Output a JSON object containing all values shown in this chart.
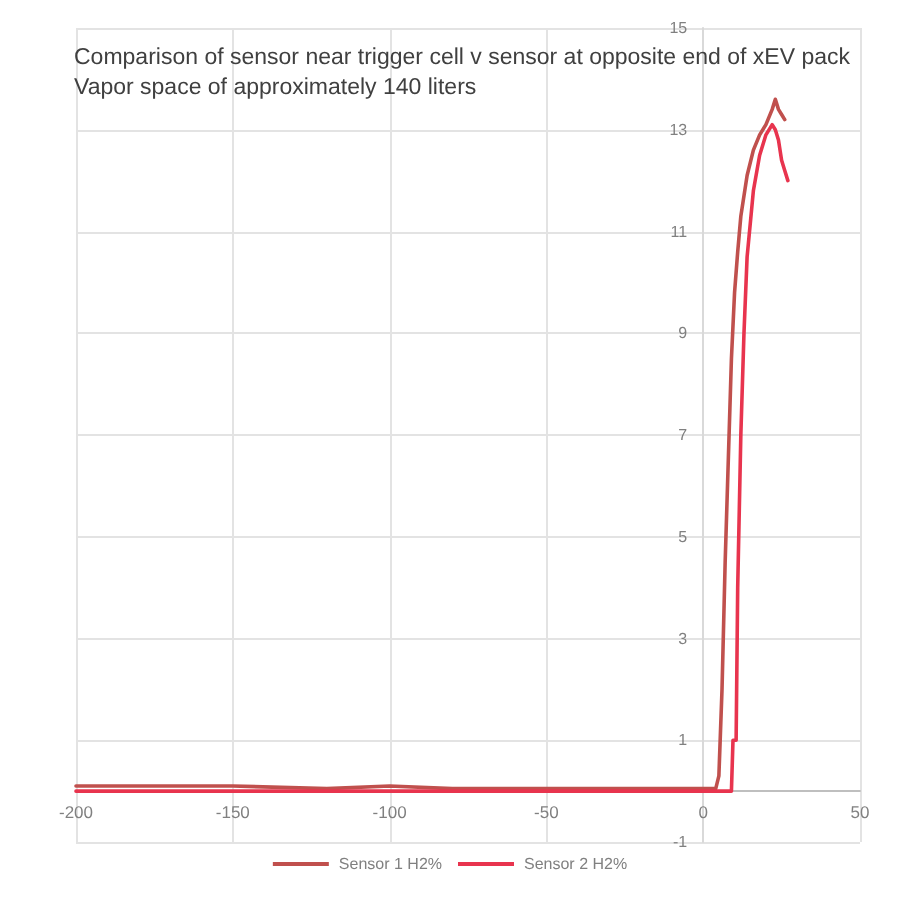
{
  "chart_data": {
    "type": "line",
    "title": "Comparison of sensor near trigger cell v sensor at opposite end of xEV pack",
    "subtitle": "Vapor space of approximately 140 liters",
    "xlim": [
      -200,
      50
    ],
    "xticks": [
      -200,
      -150,
      -100,
      -50,
      0,
      50
    ],
    "ylim": [
      -1,
      15
    ],
    "yticks": [
      -1,
      1,
      3,
      5,
      7,
      9,
      11,
      13,
      15
    ],
    "grid": true,
    "legend": "bottom",
    "marker": "none",
    "line_style": "solid",
    "series": [
      {
        "name": "Sensor 1 H2%",
        "color": "#c0504d",
        "x": [
          -200,
          -180,
          -150,
          -120,
          -100,
          -80,
          -50,
          -20,
          0,
          4,
          5,
          6,
          7,
          8,
          9,
          10,
          11,
          12,
          14,
          16,
          18,
          20,
          22,
          23,
          24,
          25,
          26
        ],
        "values": [
          0.1,
          0.1,
          0.1,
          0.05,
          0.1,
          0.05,
          0.05,
          0.05,
          0.05,
          0.05,
          0.3,
          2,
          4.5,
          6.5,
          8.5,
          9.8,
          10.6,
          11.3,
          12.1,
          12.6,
          12.9,
          13.1,
          13.4,
          13.6,
          13.4,
          13.3,
          13.2
        ]
      },
      {
        "name": "Sensor 2 H2%",
        "color": "#e8344e",
        "x": [
          -200,
          -150,
          -100,
          -50,
          0,
          5,
          9,
          9.5,
          10,
          10.5,
          11,
          12,
          13,
          14,
          16,
          18,
          20,
          22,
          23,
          24,
          25,
          26,
          27
        ],
        "values": [
          0,
          0,
          0,
          0,
          0,
          0,
          0,
          1,
          1,
          1,
          4,
          7,
          9,
          10.5,
          11.8,
          12.5,
          12.9,
          13.1,
          13,
          12.8,
          12.4,
          12.2,
          12
        ]
      }
    ]
  }
}
